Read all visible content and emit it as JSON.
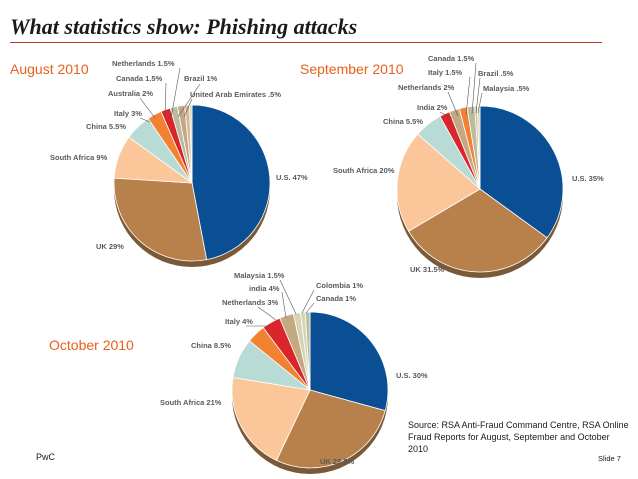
{
  "title": "What statistics show:  Phishing attacks",
  "colors": {
    "U.S.": "#0a4f94",
    "UK": "#b8804a",
    "South Africa": "#fbc79a",
    "China": "#b8dbd6",
    "Italy": "#f08232",
    "Australia": "#d9262a",
    "India": "#d9262a",
    "Netherlands": "#c4a882",
    "Canada": "#b9bc9f",
    "Brazil": "#d4ba97",
    "United Arab Emirates": "#d4d4b5",
    "Malaysia": "#d4d4b5",
    "Colombia": "#d4d4b5"
  },
  "chart_data": [
    {
      "type": "pie",
      "title": "August 2010",
      "categories": [
        "U.S.",
        "UK",
        "South Africa",
        "China",
        "Italy",
        "Australia",
        "Canada",
        "Netherlands",
        "Brazil",
        "United Arab Emirates"
      ],
      "values": [
        47,
        29,
        9,
        5.5,
        3,
        2,
        1.5,
        1.5,
        1,
        0.5
      ],
      "labels": [
        "U.S. 47%",
        "UK 29%",
        "South Africa 9%",
        "China 5.5%",
        "Italy 3%",
        "Australia 2%",
        "Canada 1.5%",
        "Netherlands 1.5%",
        "Brazil 1%",
        "United Arab Emirates .5%"
      ]
    },
    {
      "type": "pie",
      "title": "September 2010",
      "categories": [
        "U.S.",
        "UK",
        "South Africa",
        "China",
        "India",
        "Netherlands",
        "Italy",
        "Canada",
        "Brazil",
        "Malaysia"
      ],
      "values": [
        35,
        31.5,
        20,
        5.5,
        2,
        2,
        1.5,
        1.5,
        0.5,
        0.5
      ],
      "labels": [
        "U.S. 35%",
        "UK 31.5%",
        "South Africa 20%",
        "China 5.5%",
        "India 2%",
        "Netherlands 2%",
        "Italy 1.5%",
        "Canada 1.5%",
        "Brazil .5%",
        "Malaysia .5%"
      ]
    },
    {
      "type": "pie",
      "title": "October 2010",
      "categories": [
        "U.S.",
        "UK",
        "South Africa",
        "China",
        "Italy",
        "India",
        "Netherlands",
        "Malaysia",
        "Colombia",
        "Canada"
      ],
      "values": [
        30,
        28.5,
        21,
        8.5,
        4,
        4,
        3,
        1.5,
        1,
        1
      ],
      "labels": [
        "U.S. 30%",
        "UK 28.5%",
        "South Africa 21%",
        "China 8.5%",
        "Italy 4%",
        "india 4%",
        "Netherlands 3%",
        "Malaysia 1.5%",
        "Colombia 1%",
        "Canada 1%"
      ]
    }
  ],
  "source": "Source: RSA Anti-Fraud Command Centre, RSA Online Fraud Reports for  August, September and October 2010",
  "footer": {
    "left": "PwC",
    "right": "Slide 7"
  }
}
